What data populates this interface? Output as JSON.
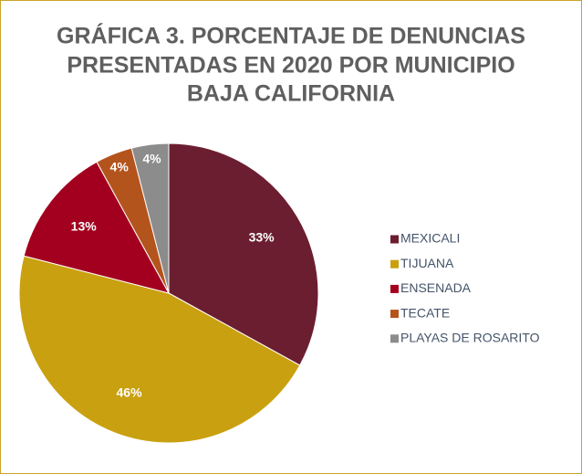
{
  "chart_data": {
    "type": "pie",
    "title": [
      "GRÁFICA 3. PORCENTAJE DE DENUNCIAS",
      "PRESENTADAS EN 2020 POR MUNICIPIO",
      "BAJA CALIFORNIA"
    ],
    "categories": [
      "MEXICALI",
      "TIJUANA",
      "ENSENADA",
      "TECATE",
      "PLAYAS DE ROSARITO"
    ],
    "values": [
      33,
      46,
      13,
      4,
      4
    ],
    "value_labels": [
      "33%",
      "46%",
      "13%",
      "4%",
      "4%"
    ],
    "colors": [
      "#6b1e30",
      "#c9a00f",
      "#a3001f",
      "#b4541d",
      "#8c8c8c"
    ],
    "legend": "right"
  }
}
